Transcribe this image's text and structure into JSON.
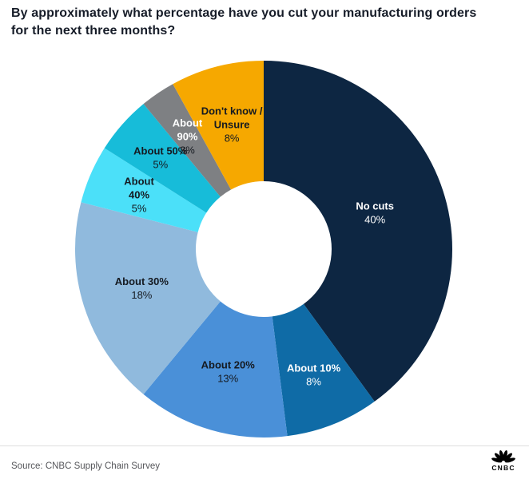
{
  "header": {
    "title": "By approximately what percentage have you cut your manufacturing orders for the next three months?"
  },
  "chart_data": {
    "type": "pie",
    "variant": "donut",
    "title": "By approximately what percentage have you cut your manufacturing orders for the next three months?",
    "direction": "clockwise",
    "start_angle_deg": 0,
    "total": 100,
    "legend": "labels-inside",
    "segments": [
      {
        "label": "No cuts",
        "label_lines": [
          "No cuts"
        ],
        "value": 40,
        "value_label": "40%",
        "color": "#0d2642",
        "label_color": "#ffffff",
        "value_color": "#ffffff",
        "label_r": 0.62
      },
      {
        "label": "About 10%",
        "label_lines": [
          "About 10%"
        ],
        "value": 8,
        "value_label": "8%",
        "color": "#0f6ba6",
        "label_color": "#ffffff",
        "value_color": "#ffffff",
        "label_r": 0.72
      },
      {
        "label": "About 20%",
        "label_lines": [
          "About 20%"
        ],
        "value": 13,
        "value_label": "13%",
        "color": "#4a90d8",
        "label_color": "#151a21",
        "value_color": "#151a21",
        "label_r": 0.68
      },
      {
        "label": "About 30%",
        "label_lines": [
          "About 30%"
        ],
        "value": 18,
        "value_label": "18%",
        "color": "#90badd",
        "label_color": "#151a21",
        "value_color": "#151a21",
        "label_r": 0.68
      },
      {
        "label": "About 40%",
        "label_lines": [
          "About",
          "40%"
        ],
        "value": 5,
        "value_label": "5%",
        "color": "#4be0f9",
        "label_color": "#151a21",
        "value_color": "#151a21",
        "label_r": 0.72
      },
      {
        "label": "About 50%",
        "label_lines": [
          "About 50%"
        ],
        "value": 5,
        "value_label": "5%",
        "color": "#17bcd9",
        "label_color": "#151a21",
        "value_color": "#151a21",
        "label_r": 0.73
      },
      {
        "label": "About 90%",
        "label_lines": [
          "About",
          "90%"
        ],
        "value": 3,
        "value_label": "3%",
        "color": "#7e8083",
        "label_color": "#ffffff",
        "value_color": "#151a21",
        "label_r": 0.72
      },
      {
        "label": "Don't know / Unsure",
        "label_lines": [
          "Don't know /",
          "Unsure"
        ],
        "value": 8,
        "value_label": "8%",
        "color": "#f6a800",
        "label_color": "#151a21",
        "value_color": "#151a21",
        "label_r": 0.68
      }
    ]
  },
  "footer": {
    "source": "Source: CNBC Supply Chain Survey",
    "logo_text": "CNBC"
  },
  "colors": {
    "background": "#ffffff",
    "divider": "#dedede",
    "title_text": "#161c28",
    "source_text": "#55565a"
  }
}
